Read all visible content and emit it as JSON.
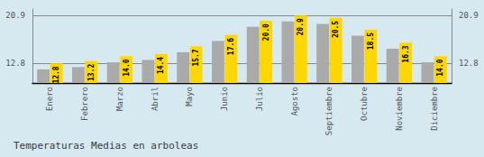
{
  "chart_data": {
    "type": "bar",
    "title": "Temperaturas Medias en arboleas",
    "categories": [
      "Enero",
      "Febrero",
      "Marzo",
      "Abril",
      "Mayo",
      "Junio",
      "Julio",
      "Agosto",
      "Septiembre",
      "Octubre",
      "Noviembre",
      "Diciembre"
    ],
    "series": [
      {
        "color": "#AAAAAA",
        "values": [
          11.8,
          12.2,
          13.0,
          13.4,
          14.7,
          16.6,
          19.0,
          19.9,
          19.5,
          17.5,
          15.3,
          13.0
        ]
      },
      {
        "color": "#FFD700",
        "values": [
          12.8,
          13.2,
          14.0,
          14.4,
          15.7,
          17.6,
          20.0,
          20.9,
          20.5,
          18.5,
          16.3,
          14.0
        ],
        "value_labels": [
          "12.8",
          "13.2",
          "14.0",
          "14.4",
          "15.7",
          "17.6",
          "20.0",
          "20.9",
          "20.5",
          "18.5",
          "16.3",
          "14.0"
        ],
        "data_labels": true
      }
    ],
    "ylim": [
      9.5,
      22.0
    ],
    "yticks": [
      12.8,
      20.9
    ],
    "grid": true
  }
}
